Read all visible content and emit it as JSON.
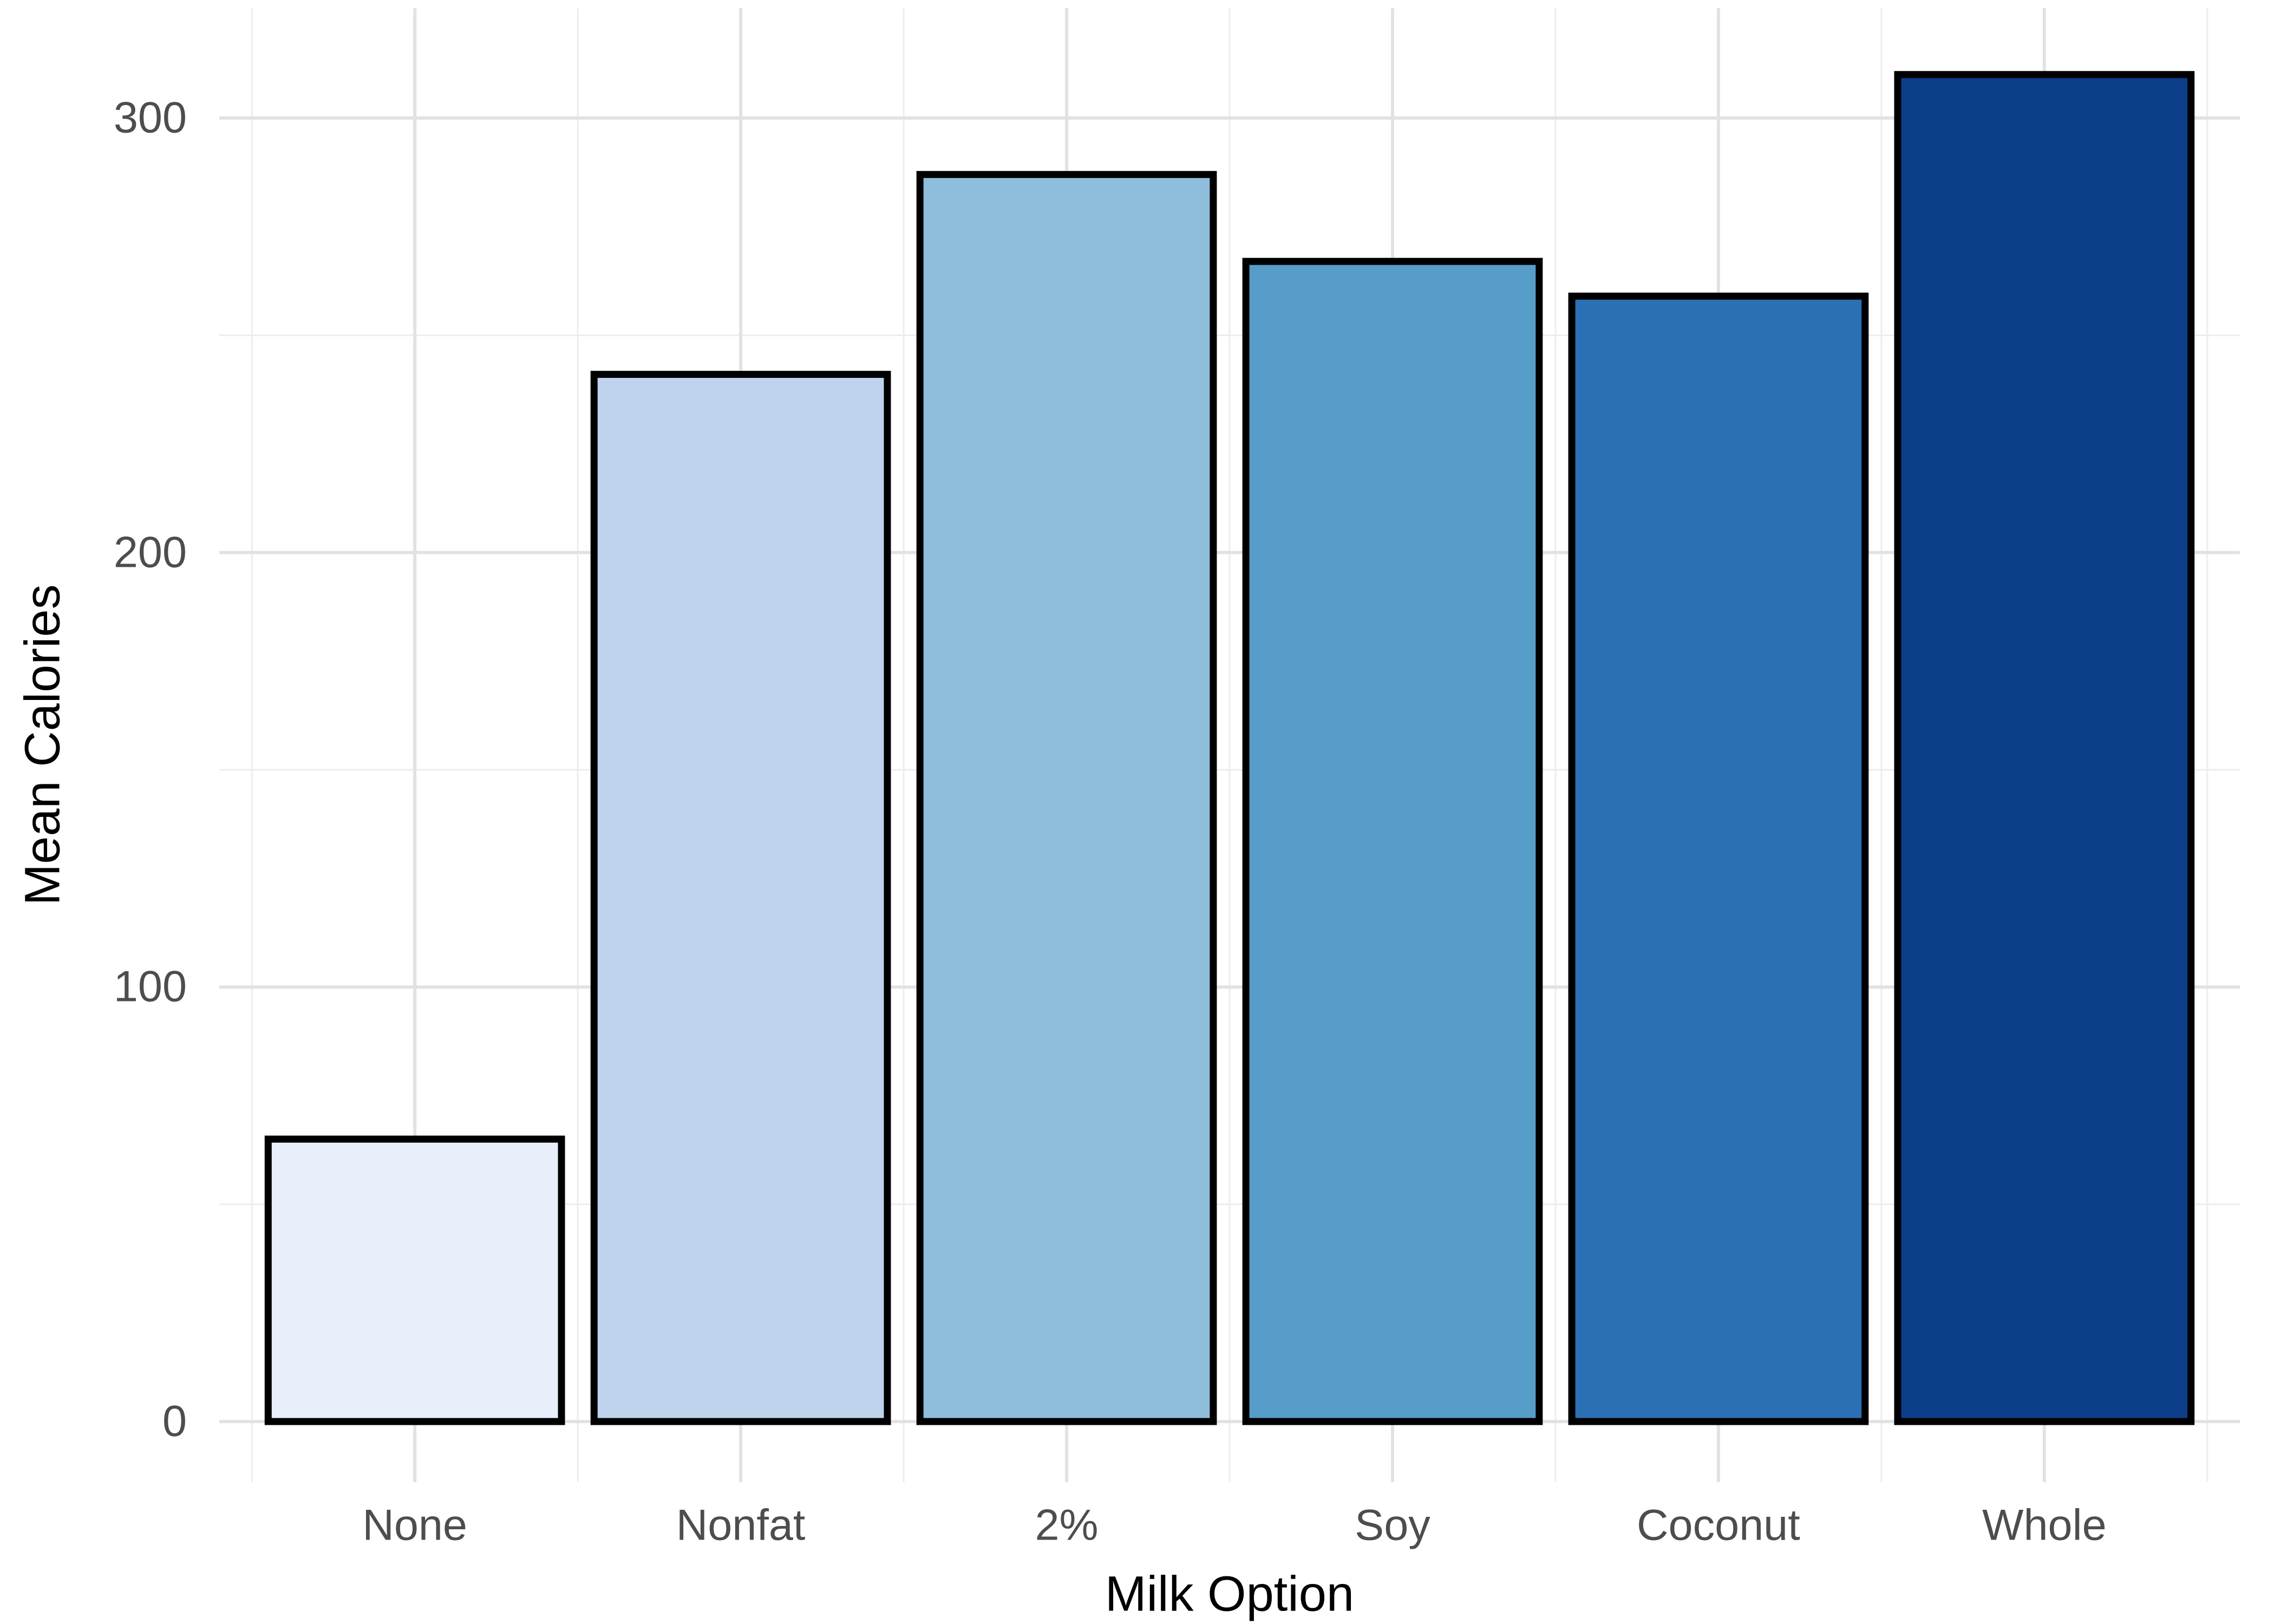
{
  "chart_data": {
    "type": "bar",
    "title": "",
    "xlabel": "Milk Option",
    "ylabel": "Mean Calories",
    "categories": [
      "None",
      "Nonfat",
      "2%",
      "Soy",
      "Coconut",
      "Whole"
    ],
    "values": [
      65,
      241,
      287,
      267,
      259,
      310
    ],
    "bar_colors": [
      "#E9EEFB",
      "#BFD4EC",
      "#8FBEDC",
      "#569DCA",
      "#2B70B4",
      "#0C3D89"
    ],
    "bar_outline_color": "#000000",
    "yticks": [
      0,
      100,
      200,
      300
    ],
    "y_minor_gridlines": [
      50,
      150,
      250
    ],
    "ylim": [
      0,
      325
    ],
    "legend_position": "none",
    "grid": "horizontal and vertical major gridlines with minor gridlines, light gray on white",
    "background_color": "#FFFFFF",
    "major_grid_color": "#E2E2E2",
    "minor_grid_color": "#EDEDED",
    "tick_label_color": "#4D4D4D",
    "axis_title_color": "#000000"
  }
}
